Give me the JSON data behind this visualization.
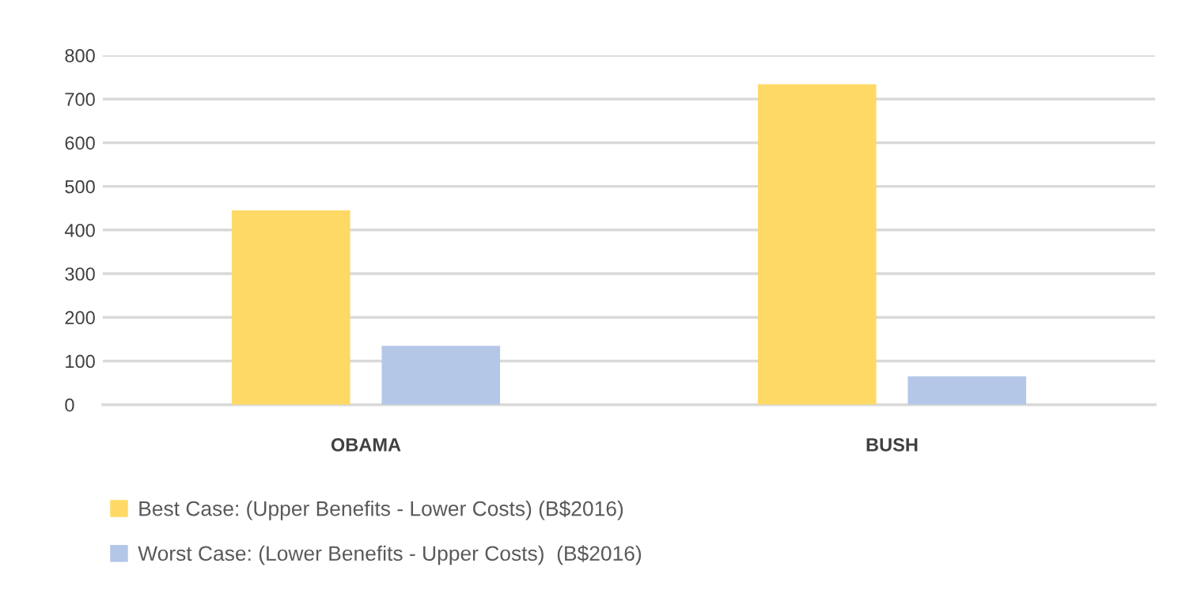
{
  "chart_data": {
    "type": "bar",
    "categories": [
      "OBAMA",
      "BUSH"
    ],
    "series": [
      {
        "name": "Best Case: (Upper Benefits - Lower Costs) (B$2016)",
        "color": "#ffd966",
        "values": [
          445,
          734
        ]
      },
      {
        "name": "Worst Case: (Lower Benefits - Upper Costs)  (B$2016)",
        "color": "#b4c7e7",
        "values": [
          135,
          65
        ]
      }
    ],
    "ylim": [
      0,
      800
    ],
    "yticks": [
      0,
      100,
      200,
      300,
      400,
      500,
      600,
      700,
      800
    ],
    "grid": "y",
    "legend": "bottom"
  }
}
